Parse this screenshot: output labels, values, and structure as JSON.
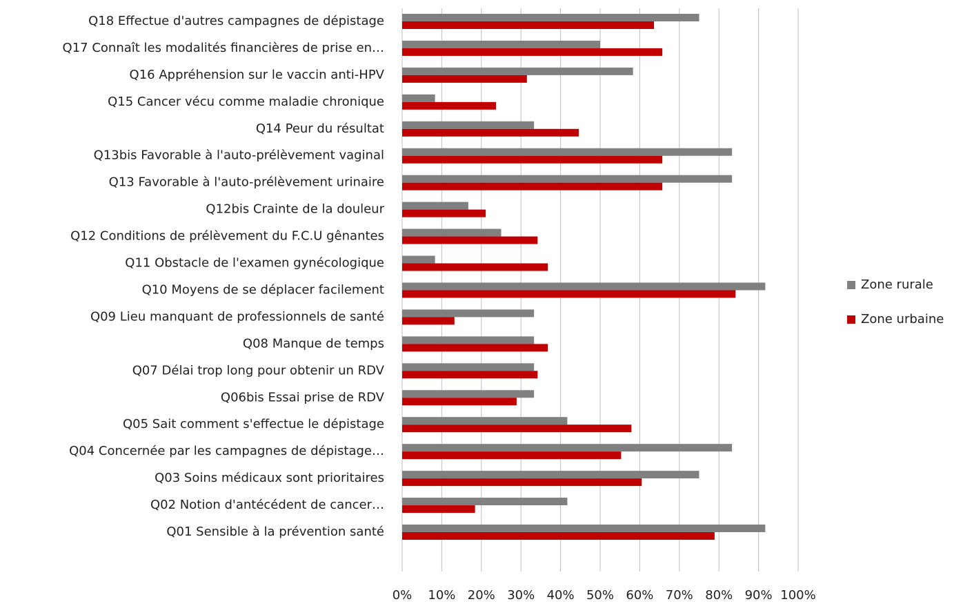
{
  "chart_data": {
    "type": "barh",
    "categories": [
      "Q18 Effectue d'autres campagnes de dépistage",
      "Q17 Connaît les modalités financières de prise en…",
      "Q16 Appréhension sur le vaccin anti-HPV",
      "Q15 Cancer vécu comme maladie chronique",
      "Q14 Peur du résultat",
      "Q13bis Favorable à l'auto-prélèvement vaginal",
      "Q13 Favorable à l'auto-prélèvement urinaire",
      "Q12bis Crainte de la douleur",
      "Q12 Conditions de prélèvement du F.C.U gênantes",
      "Q11 Obstacle de l'examen gynécologique",
      "Q10 Moyens de se déplacer facilement",
      "Q09 Lieu manquant de professionnels de santé",
      "Q08 Manque de temps",
      "Q07 Délai trop long pour obtenir un RDV",
      "Q06bis Essai prise de RDV",
      "Q05 Sait comment s'effectue le dépistage",
      "Q04 Concernée par les campagnes de dépistage…",
      "Q03 Soins médicaux sont prioritaires",
      "Q02 Notion d'antécédent de cancer…",
      "Q01 Sensible à la prévention santé"
    ],
    "series": [
      {
        "name": "Zone rurale",
        "color": "#808080",
        "values": [
          75,
          50,
          58.3,
          8.3,
          33.3,
          83.3,
          83.3,
          16.7,
          25,
          8.3,
          91.7,
          33.3,
          33.3,
          33.3,
          33.3,
          41.7,
          83.3,
          75,
          41.7,
          91.7
        ]
      },
      {
        "name": "Zone urbaine",
        "color": "#c00000",
        "values": [
          63.6,
          65.7,
          31.5,
          23.7,
          44.6,
          65.7,
          65.7,
          21.1,
          34.2,
          36.8,
          84.2,
          13.2,
          36.8,
          34.2,
          28.9,
          57.9,
          55.3,
          60.5,
          18.4,
          78.9
        ]
      }
    ],
    "xlim": [
      0,
      100
    ],
    "xticks": [
      {
        "value": 0,
        "label": "0%"
      },
      {
        "value": 10,
        "label": "10%"
      },
      {
        "value": 20,
        "label": "20%"
      },
      {
        "value": 30,
        "label": "30%"
      },
      {
        "value": 40,
        "label": "40%"
      },
      {
        "value": 50,
        "label": "50%"
      },
      {
        "value": 60,
        "label": "60%"
      },
      {
        "value": 70,
        "label": "70%"
      },
      {
        "value": 80,
        "label": "80%"
      },
      {
        "value": 90,
        "label": "90%"
      },
      {
        "value": 100,
        "label": "100%"
      }
    ],
    "grid": true,
    "legend": "right"
  }
}
